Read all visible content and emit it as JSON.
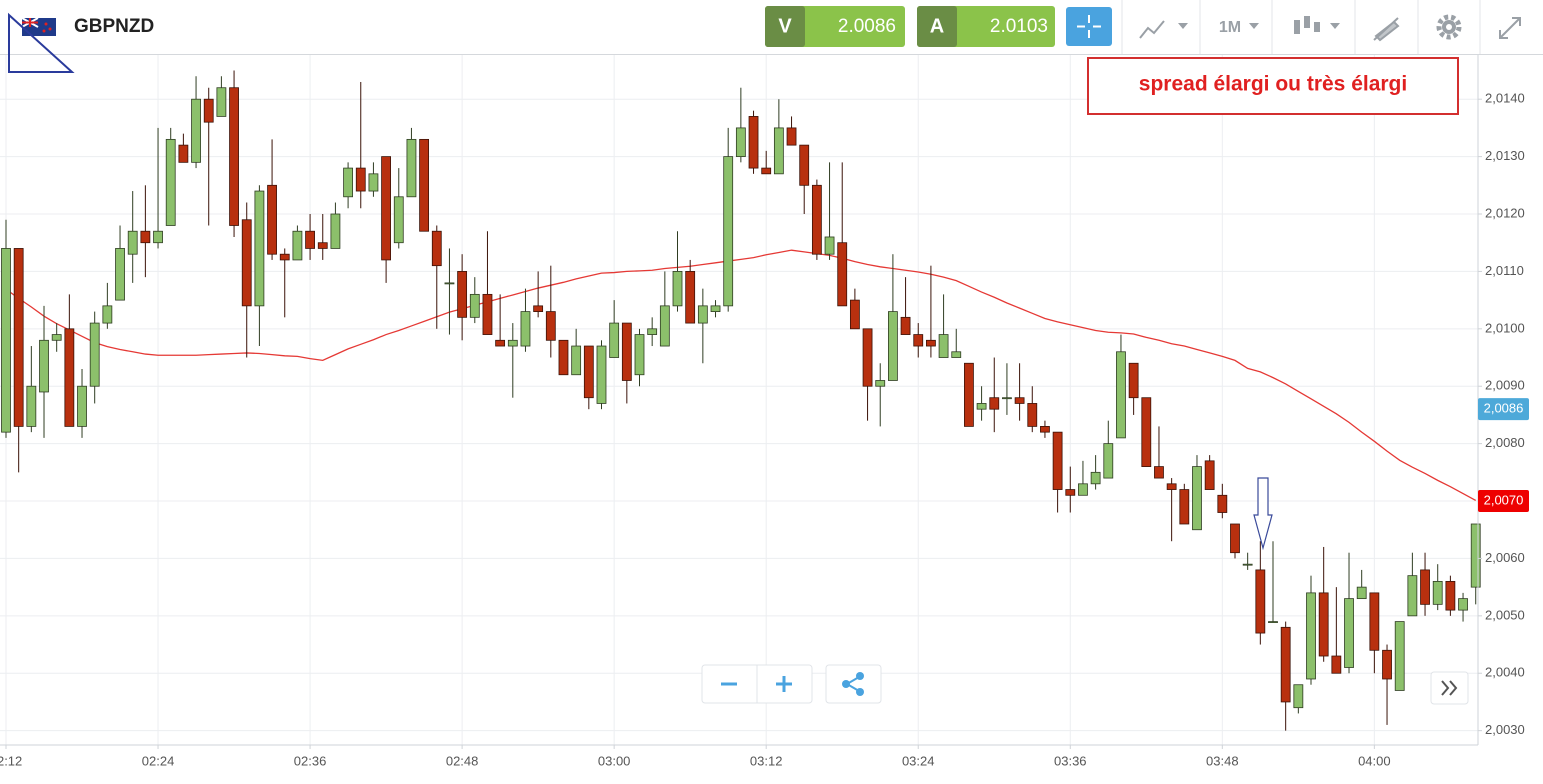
{
  "toolbar": {
    "symbol": "GBPNZD",
    "sell": {
      "label": "V",
      "price": "2.0086"
    },
    "buy": {
      "label": "A",
      "price": "2.0103"
    },
    "timeframe": "1M"
  },
  "chart_data": {
    "type": "candlestick",
    "annotation": "spread élargi ou très élargi",
    "categories": [
      "02:12",
      null,
      null,
      null,
      null,
      null,
      null,
      null,
      null,
      null,
      null,
      null,
      "02:24",
      null,
      null,
      null,
      null,
      null,
      null,
      null,
      null,
      null,
      null,
      null,
      "02:36",
      null,
      null,
      null,
      null,
      null,
      null,
      null,
      null,
      null,
      null,
      null,
      "02:48",
      null,
      null,
      null,
      null,
      null,
      null,
      null,
      null,
      null,
      null,
      null,
      "03:00",
      null,
      null,
      null,
      null,
      null,
      null,
      null,
      null,
      null,
      null,
      null,
      "03:12",
      null,
      null,
      null,
      null,
      null,
      null,
      null,
      null,
      null,
      null,
      null,
      "03:24",
      null,
      null,
      null,
      null,
      null,
      null,
      null,
      null,
      null,
      null,
      null,
      "03:36",
      null,
      null,
      null,
      null,
      null,
      null,
      null,
      null,
      null,
      null,
      null,
      "03:48",
      null,
      null,
      null,
      null,
      null,
      null,
      null,
      null,
      null,
      null,
      null,
      "04:00",
      null,
      null,
      null,
      null,
      null,
      null,
      null,
      null
    ],
    "open": [
      2.0082,
      2.0114,
      2.0083,
      2.0089,
      2.0098,
      2.01,
      2.0083,
      2.009,
      2.0101,
      2.0105,
      2.0113,
      2.0117,
      2.0115,
      2.0118,
      2.0132,
      2.0129,
      2.014,
      2.0137,
      2.0142,
      2.0119,
      2.0104,
      2.0125,
      2.0113,
      2.0112,
      2.0117,
      2.0115,
      2.0114,
      2.0123,
      2.0128,
      2.0124,
      2.013,
      2.0115,
      2.0123,
      2.0133,
      2.0117,
      2.0108,
      2.011,
      2.0102,
      2.0106,
      2.0098,
      2.0097,
      2.0097,
      2.0104,
      2.0103,
      2.0098,
      2.0092,
      2.0097,
      2.0087,
      2.0095,
      2.0101,
      2.0092,
      2.0099,
      2.0097,
      2.0104,
      2.011,
      2.0101,
      2.0103,
      2.0104,
      2.013,
      2.0137,
      2.0128,
      2.0127,
      2.0135,
      2.0132,
      2.0125,
      2.0113,
      2.0115,
      2.0105,
      2.01,
      2.009,
      2.0091,
      2.0102,
      2.0099,
      2.0098,
      2.0095,
      2.0095,
      2.0094,
      2.0086,
      2.0088,
      2.0088,
      2.0088,
      2.0087,
      2.0083,
      2.0082,
      2.0072,
      2.0071,
      2.0073,
      2.0074,
      2.0081,
      2.0094,
      2.0088,
      2.0076,
      2.0073,
      2.0072,
      2.0065,
      2.0077,
      2.0071,
      2.0066,
      2.0059,
      2.0058,
      2.0049,
      2.0048,
      2.0034,
      2.0039,
      2.0054,
      2.0043,
      2.0041,
      2.0053,
      2.0054,
      2.0044,
      2.0037,
      2.005,
      2.0058,
      2.0052,
      2.0056,
      2.0051,
      2.0055
    ],
    "high": [
      2.0119,
      2.0114,
      2.0097,
      2.0104,
      2.0101,
      2.0106,
      2.0093,
      2.0103,
      2.0108,
      2.0118,
      2.0124,
      2.0125,
      2.0135,
      2.0135,
      2.0134,
      2.0144,
      2.0142,
      2.0144,
      2.0145,
      2.0122,
      2.0125,
      2.0133,
      2.0114,
      2.0118,
      2.012,
      2.012,
      2.0122,
      2.0129,
      2.0143,
      2.0129,
      2.013,
      2.0128,
      2.0135,
      2.0133,
      2.0118,
      2.0114,
      2.0113,
      2.0109,
      2.0117,
      2.0106,
      2.0101,
      2.0107,
      2.011,
      2.0111,
      2.0098,
      2.01,
      2.0097,
      2.0098,
      2.0105,
      2.0101,
      2.01,
      2.0102,
      2.011,
      2.0117,
      2.0112,
      2.0107,
      2.0105,
      2.0135,
      2.0142,
      2.0138,
      2.0131,
      2.014,
      2.0137,
      2.0132,
      2.0126,
      2.0129,
      2.0129,
      2.0107,
      2.01,
      2.0094,
      2.0113,
      2.0109,
      2.0101,
      2.0111,
      2.0106,
      2.01,
      2.0094,
      2.009,
      2.0095,
      2.0094,
      2.0094,
      2.009,
      2.0084,
      2.0082,
      2.0076,
      2.0077,
      2.0078,
      2.0084,
      2.0099,
      2.0094,
      2.0088,
      2.0083,
      2.0074,
      2.0073,
      2.0078,
      2.0078,
      2.0073,
      2.0066,
      2.0061,
      2.0063,
      2.0063,
      2.0049,
      2.0038,
      2.0057,
      2.0062,
      2.0055,
      2.0061,
      2.0058,
      2.0054,
      2.0045,
      2.0049,
      2.0061,
      2.0061,
      2.0059,
      2.0057,
      2.0054,
      2.0066
    ],
    "low": [
      2.0081,
      2.0075,
      2.0082,
      2.0081,
      2.0096,
      2.0083,
      2.0081,
      2.0087,
      2.01,
      2.0105,
      2.0108,
      2.0109,
      2.0114,
      2.0118,
      2.0129,
      2.0128,
      2.0118,
      2.0137,
      2.0116,
      2.0095,
      2.0097,
      2.0112,
      2.0102,
      2.0112,
      2.0112,
      2.0112,
      2.0114,
      2.0121,
      2.0121,
      2.0123,
      2.0108,
      2.0114,
      2.0123,
      2.0117,
      2.01,
      2.0099,
      2.0098,
      2.0101,
      2.0099,
      2.0097,
      2.0088,
      2.0096,
      2.0102,
      2.0095,
      2.0092,
      2.0092,
      2.0086,
      2.0086,
      2.0095,
      2.0087,
      2.009,
      2.0097,
      2.0097,
      2.0103,
      2.0101,
      2.0094,
      2.0102,
      2.0103,
      2.0129,
      2.0127,
      2.0127,
      2.0127,
      2.0132,
      2.012,
      2.0112,
      2.0112,
      2.0104,
      2.01,
      2.0084,
      2.0083,
      2.0091,
      2.0099,
      2.0095,
      2.0095,
      2.0095,
      2.0095,
      2.0083,
      2.0084,
      2.0082,
      2.0085,
      2.0084,
      2.0082,
      2.0081,
      2.0068,
      2.0068,
      2.0071,
      2.0072,
      2.0074,
      2.0081,
      2.0085,
      2.0076,
      2.0074,
      2.0063,
      2.0066,
      2.0065,
      2.0072,
      2.0067,
      2.006,
      2.0058,
      2.0045,
      2.0049,
      2.003,
      2.0033,
      2.0038,
      2.0042,
      2.004,
      2.004,
      2.0053,
      2.004,
      2.0031,
      2.0037,
      2.005,
      2.005,
      2.0051,
      2.005,
      2.0049,
      2.0052
    ],
    "close": [
      2.0114,
      2.0083,
      2.009,
      2.0098,
      2.0099,
      2.0083,
      2.009,
      2.0101,
      2.0104,
      2.0114,
      2.0117,
      2.0115,
      2.0117,
      2.0133,
      2.0129,
      2.014,
      2.0136,
      2.0142,
      2.0118,
      2.0104,
      2.0124,
      2.0113,
      2.0112,
      2.0117,
      2.0114,
      2.0114,
      2.012,
      2.0128,
      2.0124,
      2.0127,
      2.0112,
      2.0123,
      2.0133,
      2.0117,
      2.0111,
      2.0108,
      2.0102,
      2.0106,
      2.0099,
      2.0097,
      2.0098,
      2.0103,
      2.0103,
      2.0098,
      2.0092,
      2.0097,
      2.0088,
      2.0097,
      2.0101,
      2.0091,
      2.0099,
      2.01,
      2.0104,
      2.011,
      2.0101,
      2.0104,
      2.0104,
      2.013,
      2.0135,
      2.0128,
      2.0127,
      2.0135,
      2.0132,
      2.0125,
      2.0113,
      2.0116,
      2.0104,
      2.01,
      2.009,
      2.0091,
      2.0103,
      2.0099,
      2.0097,
      2.0097,
      2.0099,
      2.0096,
      2.0083,
      2.0087,
      2.0086,
      2.0088,
      2.0087,
      2.0083,
      2.0082,
      2.0072,
      2.0071,
      2.0073,
      2.0075,
      2.008,
      2.0096,
      2.0088,
      2.0076,
      2.0074,
      2.0072,
      2.0066,
      2.0076,
      2.0072,
      2.0068,
      2.0061,
      2.0059,
      2.0047,
      2.0049,
      2.0035,
      2.0038,
      2.0054,
      2.0043,
      2.004,
      2.0053,
      2.0055,
      2.0044,
      2.0039,
      2.0049,
      2.0057,
      2.0052,
      2.0056,
      2.0051,
      2.0053,
      2.0066
    ],
    "up_color": "#8cc06b",
    "down_color": "#b8300f",
    "moving_average": {
      "color": "#e53935",
      "values": [
        2.01069,
        2.01053,
        2.01038,
        2.01022,
        2.01009,
        2.00998,
        2.00987,
        2.00976,
        2.00969,
        2.00964,
        2.0096,
        2.00956,
        2.00954,
        2.00954,
        2.00954,
        2.00954,
        2.00955,
        2.00956,
        2.00957,
        2.00958,
        2.00957,
        2.00955,
        2.00953,
        2.00952,
        2.00948,
        2.00945,
        2.00955,
        2.00965,
        2.00973,
        2.00981,
        2.0099,
        2.00997,
        2.01005,
        2.01013,
        2.01021,
        2.01029,
        2.01035,
        2.01041,
        2.01047,
        2.01053,
        2.01059,
        2.01065,
        2.01071,
        2.01076,
        2.01081,
        2.01087,
        2.01092,
        2.01097,
        2.01098,
        2.011,
        2.01101,
        2.01102,
        2.01105,
        2.01107,
        2.01109,
        2.01112,
        2.01115,
        2.01118,
        2.01121,
        2.01124,
        2.01129,
        2.01133,
        2.01137,
        2.01134,
        2.01131,
        2.01128,
        2.01123,
        2.01117,
        2.01112,
        2.01108,
        2.01105,
        2.01102,
        2.01099,
        2.01095,
        2.0109,
        2.01084,
        2.01074,
        2.01064,
        2.01055,
        2.01045,
        2.01036,
        2.01027,
        2.01018,
        2.01012,
        2.01007,
        2.01002,
        2.00997,
        2.00994,
        2.00993,
        2.00991,
        2.00985,
        2.0098,
        2.00974,
        2.0097,
        2.00964,
        2.00958,
        2.00952,
        2.00945,
        2.00931,
        2.00925,
        2.00915,
        2.00904,
        2.00891,
        2.00878,
        2.00865,
        2.00852,
        2.00837,
        2.0082,
        2.00804,
        2.00787,
        2.00771,
        2.00759,
        2.00748,
        2.00736,
        2.00725,
        2.00713,
        2.00701
      ]
    },
    "ylim": [
      2.00275,
      2.01477
    ],
    "yticks": [
      {
        "value": 2.003,
        "label": "2,0030"
      },
      {
        "value": 2.004,
        "label": "2,0040"
      },
      {
        "value": 2.005,
        "label": "2,0050"
      },
      {
        "value": 2.006,
        "label": "2,0060"
      },
      {
        "value": 2.007,
        "label": "2,0070"
      },
      {
        "value": 2.008,
        "label": "2,0080"
      },
      {
        "value": 2.009,
        "label": "2,0090"
      },
      {
        "value": 2.01,
        "label": "2,0100"
      },
      {
        "value": 2.011,
        "label": "2,0110"
      },
      {
        "value": 2.012,
        "label": "2,0120"
      },
      {
        "value": 2.013,
        "label": "2,0130"
      },
      {
        "value": 2.014,
        "label": "2,0140"
      }
    ],
    "grid": true,
    "price_markers": [
      {
        "value": 2.0086,
        "label": "2,0086",
        "color": "#4da9d9"
      },
      {
        "value": 2.007,
        "label": "2,0070",
        "color": "#ee0000"
      }
    ]
  }
}
